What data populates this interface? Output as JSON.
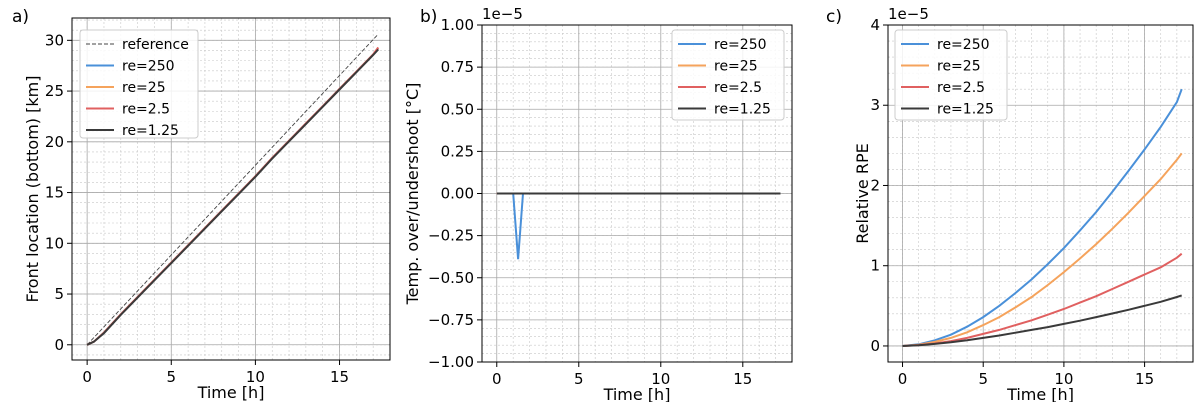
{
  "chart_data": [
    {
      "type": "line",
      "panel_label": "a)",
      "title": "",
      "xlabel": "Time [h]",
      "ylabel": "Front location (bottom) [km]",
      "xlim": [
        -0.9,
        18.0
      ],
      "ylim": [
        -1.5,
        32.2
      ],
      "xticks": [
        0,
        5,
        10,
        15
      ],
      "yticks": [
        0,
        5,
        10,
        15,
        20,
        25,
        30
      ],
      "offset_text": "",
      "grid": true,
      "legend_position": "top-left",
      "series": [
        {
          "name": "reference",
          "color": "#444444",
          "dash": "4,2",
          "width": 0.9,
          "x": [
            0,
            17.3
          ],
          "y": [
            0,
            30.6
          ]
        },
        {
          "name": "re=250",
          "color": "#4a90d9",
          "width": 2,
          "x": [
            0,
            0.4,
            1,
            2,
            3,
            4,
            5,
            6,
            7,
            8,
            9,
            10,
            11,
            12,
            13,
            14,
            15,
            16,
            17,
            17.3
          ],
          "y": [
            0,
            0.3,
            1.2,
            3.0,
            4.7,
            6.4,
            8.1,
            9.8,
            11.5,
            13.2,
            14.9,
            16.6,
            18.4,
            20.1,
            21.8,
            23.5,
            25.2,
            26.9,
            28.6,
            29.2
          ]
        },
        {
          "name": "re=25",
          "color": "#f5a35c",
          "width": 2,
          "x": [
            0,
            0.4,
            1,
            2,
            3,
            4,
            5,
            6,
            7,
            8,
            9,
            10,
            11,
            12,
            13,
            14,
            15,
            16,
            17,
            17.3
          ],
          "y": [
            0,
            0.3,
            1.2,
            3.0,
            4.7,
            6.4,
            8.1,
            9.8,
            11.5,
            13.2,
            14.9,
            16.6,
            18.4,
            20.1,
            21.8,
            23.5,
            25.2,
            26.9,
            28.6,
            29.25
          ]
        },
        {
          "name": "re=2.5",
          "color": "#e06060",
          "width": 2,
          "x": [
            0,
            0.4,
            1,
            2,
            3,
            4,
            5,
            6,
            7,
            8,
            9,
            10,
            11,
            12,
            13,
            14,
            15,
            16,
            17,
            17.3
          ],
          "y": [
            0,
            0.3,
            1.2,
            3.0,
            4.7,
            6.4,
            8.1,
            9.8,
            11.5,
            13.2,
            14.9,
            16.6,
            18.4,
            20.1,
            21.8,
            23.5,
            25.2,
            26.9,
            28.6,
            29.3
          ]
        },
        {
          "name": "re=1.25",
          "color": "#3a3a3a",
          "width": 2,
          "x": [
            0,
            0.4,
            1,
            2,
            3,
            4,
            5,
            6,
            7,
            8,
            9,
            10,
            11,
            12,
            13,
            14,
            15,
            16,
            17,
            17.3
          ],
          "y": [
            0,
            0.3,
            1.15,
            2.95,
            4.65,
            6.35,
            8.05,
            9.75,
            11.45,
            13.15,
            14.85,
            16.55,
            18.35,
            20.05,
            21.75,
            23.45,
            25.15,
            26.85,
            28.55,
            29.1
          ]
        }
      ]
    },
    {
      "type": "line",
      "panel_label": "b)",
      "title": "",
      "xlabel": "Time [h]",
      "ylabel": "Temp. over/undershoot [°C]",
      "xlim": [
        -0.9,
        18.0
      ],
      "ylim": [
        -1.0,
        1.0
      ],
      "xticks": [
        0,
        5,
        10,
        15
      ],
      "yticks": [
        -1.0,
        -0.75,
        -0.5,
        -0.25,
        0.0,
        0.25,
        0.5,
        0.75,
        1.0
      ],
      "ytick_labels": [
        "−1.00",
        "−0.75",
        "−0.50",
        "−0.25",
        "0.00",
        "0.25",
        "0.50",
        "0.75",
        "1.00"
      ],
      "offset_text": "1e−5",
      "grid": true,
      "legend_position": "top-right",
      "series": [
        {
          "name": "re=250",
          "color": "#4a90d9",
          "width": 2,
          "x": [
            0,
            1.0,
            1.3,
            1.6,
            2,
            5,
            10,
            15,
            17.3
          ],
          "y": [
            0,
            0,
            -0.39,
            0,
            0,
            0,
            0,
            0,
            0
          ]
        },
        {
          "name": "re=25",
          "color": "#f5a35c",
          "width": 2,
          "x": [
            0,
            5,
            10,
            15,
            17.3
          ],
          "y": [
            0,
            0,
            0,
            0,
            0
          ]
        },
        {
          "name": "re=2.5",
          "color": "#e06060",
          "width": 2,
          "x": [
            0,
            5,
            10,
            15,
            17.3
          ],
          "y": [
            0,
            0,
            0,
            0,
            0
          ]
        },
        {
          "name": "re=1.25",
          "color": "#3a3a3a",
          "width": 2,
          "x": [
            0,
            5,
            10,
            15,
            17.3
          ],
          "y": [
            0,
            0,
            0,
            0,
            0
          ]
        }
      ]
    },
    {
      "type": "line",
      "panel_label": "c)",
      "title": "",
      "xlabel": "Time [h]",
      "ylabel": "Relative RPE",
      "xlim": [
        -0.9,
        18.0
      ],
      "ylim": [
        -0.2,
        4.0
      ],
      "xticks": [
        0,
        5,
        10,
        15
      ],
      "yticks": [
        0,
        1,
        2,
        3,
        4
      ],
      "offset_text": "1e−5",
      "grid": true,
      "legend_position": "top-left",
      "series": [
        {
          "name": "re=250",
          "color": "#4a90d9",
          "width": 2,
          "x": [
            0,
            1,
            2,
            3,
            4,
            5,
            6,
            7,
            8,
            9,
            10,
            11,
            12,
            13,
            14,
            15,
            16,
            17,
            17.3
          ],
          "y": [
            0,
            0.02,
            0.07,
            0.14,
            0.24,
            0.36,
            0.5,
            0.66,
            0.83,
            1.02,
            1.22,
            1.44,
            1.67,
            1.92,
            2.18,
            2.45,
            2.73,
            3.04,
            3.2
          ]
        },
        {
          "name": "re=25",
          "color": "#f5a35c",
          "width": 2,
          "x": [
            0,
            1,
            2,
            3,
            4,
            5,
            6,
            7,
            8,
            9,
            10,
            11,
            12,
            13,
            14,
            15,
            16,
            17,
            17.3
          ],
          "y": [
            0,
            0.015,
            0.05,
            0.1,
            0.17,
            0.26,
            0.36,
            0.48,
            0.61,
            0.76,
            0.92,
            1.09,
            1.27,
            1.46,
            1.66,
            1.87,
            2.08,
            2.32,
            2.4
          ]
        },
        {
          "name": "re=2.5",
          "color": "#e06060",
          "width": 2,
          "x": [
            0,
            1,
            2,
            3,
            4,
            5,
            6,
            7,
            8,
            9,
            10,
            11,
            12,
            13,
            14,
            15,
            16,
            17,
            17.3
          ],
          "y": [
            0,
            0.01,
            0.03,
            0.06,
            0.1,
            0.15,
            0.2,
            0.26,
            0.32,
            0.39,
            0.46,
            0.54,
            0.62,
            0.71,
            0.8,
            0.89,
            0.98,
            1.1,
            1.15
          ]
        },
        {
          "name": "re=1.25",
          "color": "#3a3a3a",
          "width": 2,
          "x": [
            0,
            1,
            2,
            3,
            4,
            5,
            6,
            7,
            8,
            9,
            10,
            11,
            12,
            13,
            14,
            15,
            16,
            17,
            17.3
          ],
          "y": [
            0,
            0.008,
            0.025,
            0.045,
            0.07,
            0.1,
            0.13,
            0.165,
            0.2,
            0.235,
            0.275,
            0.315,
            0.36,
            0.405,
            0.45,
            0.5,
            0.55,
            0.61,
            0.63
          ]
        }
      ]
    }
  ]
}
